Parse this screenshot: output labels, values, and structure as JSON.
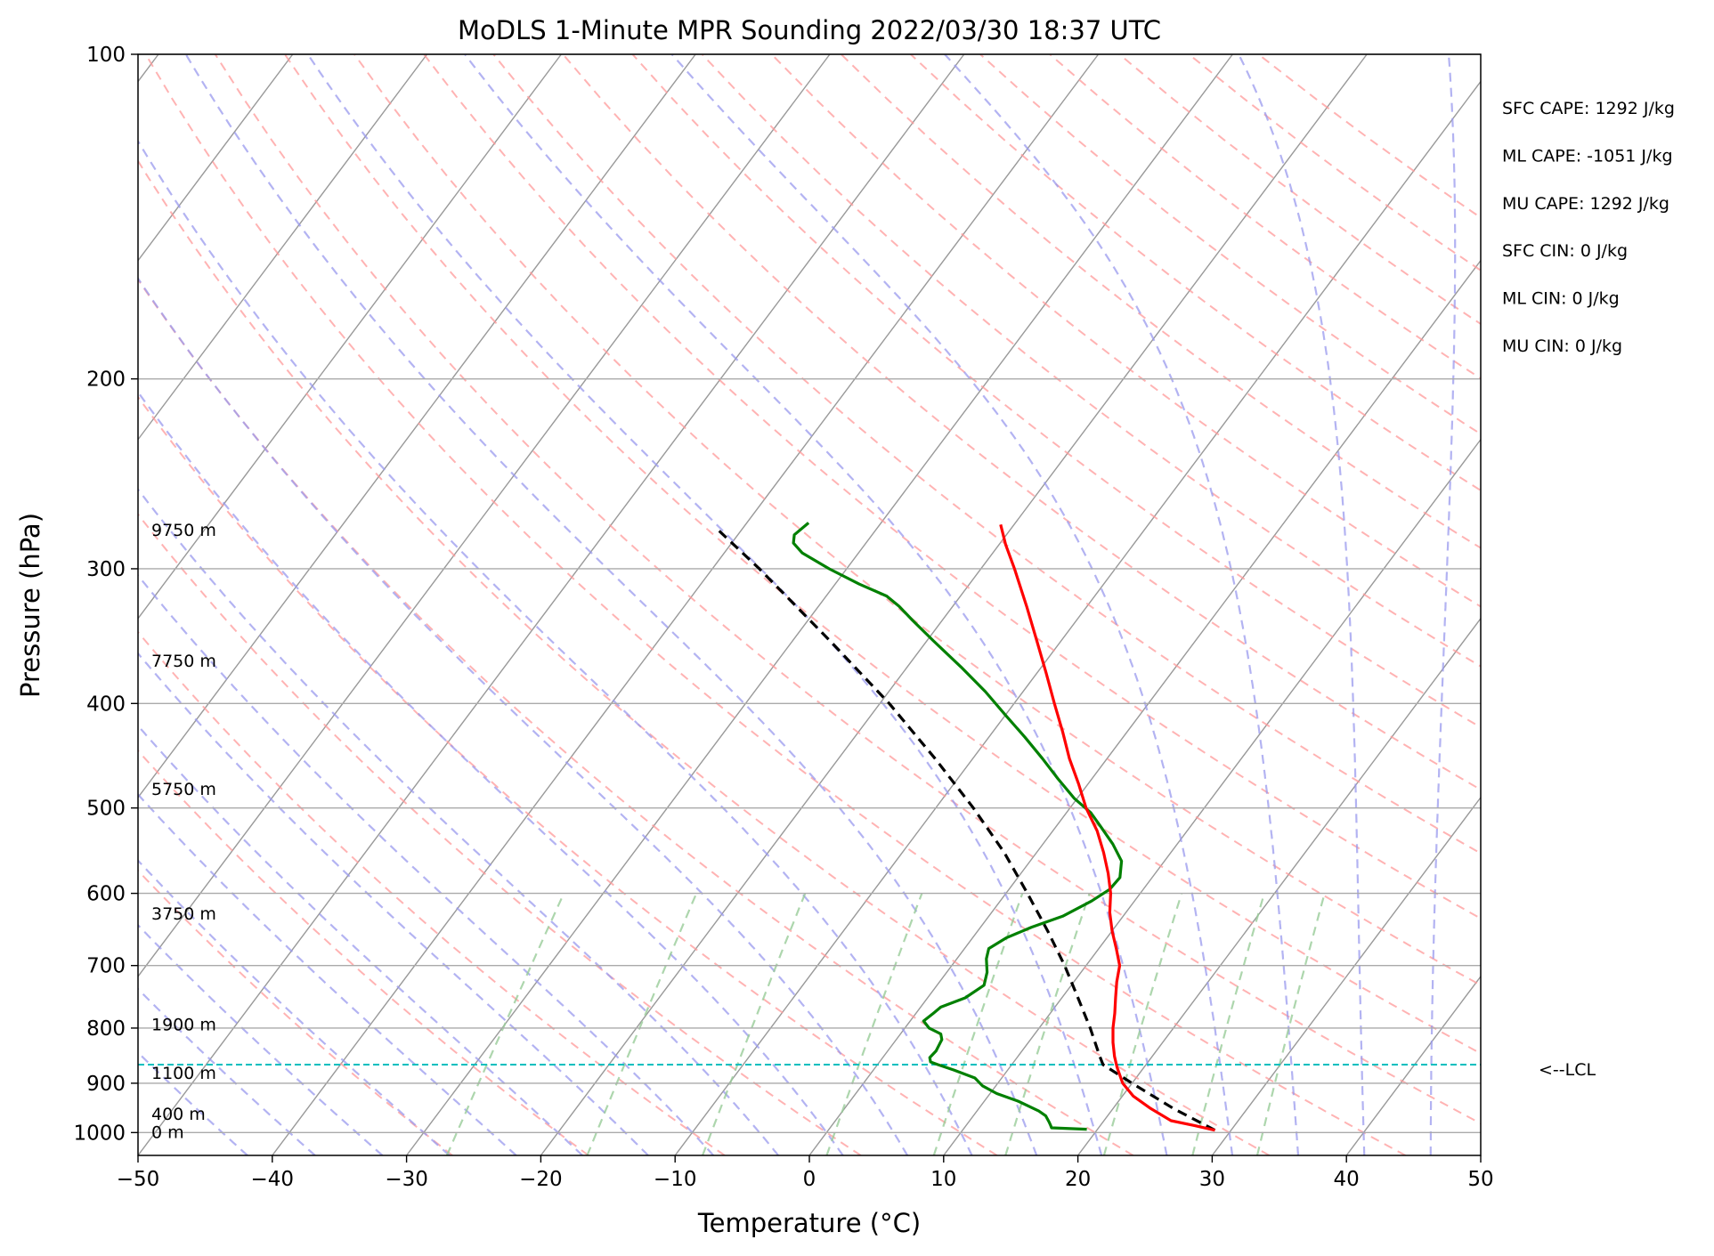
{
  "chart_data": {
    "type": "skew-t log-p sounding",
    "title": "MoDLS 1-Minute MPR Sounding 2022/03/30 18:37 UTC",
    "xlabel": "Temperature (°C)",
    "ylabel": "Pressure (hPa)",
    "xlim": [
      -50,
      50
    ],
    "ylim": [
      1050,
      100
    ],
    "y_scale": "log",
    "grid": true,
    "x_ticks": [
      -50,
      -40,
      -30,
      -20,
      -10,
      0,
      10,
      20,
      30,
      40,
      50
    ],
    "y_ticks": [
      1000,
      900,
      800,
      700,
      600,
      500,
      400,
      300,
      200,
      100
    ],
    "x_tick_labels": [
      "−50",
      "−40",
      "−30",
      "−20",
      "−10",
      "0",
      "10",
      "20",
      "30",
      "40",
      "50"
    ],
    "y_tick_labels": [
      "1000",
      "900",
      "800",
      "700",
      "600",
      "500",
      "400",
      "300",
      "200",
      "100"
    ],
    "colors": {
      "temperature": "#ff0000",
      "dewpoint": "#008000",
      "parcel": "#000000",
      "lcl": "#00bfbf",
      "dry_adiabats": "#ff9999",
      "moist_adiabats": "#9999ee",
      "mixing_ratio": "#99cc99",
      "isotherms": "#999999"
    },
    "temperature_profile": [
      {
        "p": 995,
        "t": 28.8
      },
      {
        "p": 985,
        "t": 27.0
      },
      {
        "p": 975,
        "t": 25.0
      },
      {
        "p": 950,
        "t": 22.8
      },
      {
        "p": 925,
        "t": 20.8
      },
      {
        "p": 900,
        "t": 19.3
      },
      {
        "p": 870,
        "t": 18.0
      },
      {
        "p": 850,
        "t": 17.2
      },
      {
        "p": 825,
        "t": 16.3
      },
      {
        "p": 800,
        "t": 15.5
      },
      {
        "p": 775,
        "t": 14.8
      },
      {
        "p": 750,
        "t": 14.0
      },
      {
        "p": 725,
        "t": 13.2
      },
      {
        "p": 700,
        "t": 12.5
      },
      {
        "p": 675,
        "t": 11.3
      },
      {
        "p": 650,
        "t": 10.0
      },
      {
        "p": 625,
        "t": 8.8
      },
      {
        "p": 600,
        "t": 7.8
      },
      {
        "p": 575,
        "t": 6.5
      },
      {
        "p": 550,
        "t": 5.0
      },
      {
        "p": 525,
        "t": 3.3
      },
      {
        "p": 500,
        "t": 1.2
      },
      {
        "p": 475,
        "t": -0.7
      },
      {
        "p": 450,
        "t": -2.8
      },
      {
        "p": 425,
        "t": -4.8
      },
      {
        "p": 400,
        "t": -7.0
      },
      {
        "p": 375,
        "t": -9.3
      },
      {
        "p": 350,
        "t": -11.8
      },
      {
        "p": 325,
        "t": -14.5
      },
      {
        "p": 300,
        "t": -17.5
      },
      {
        "p": 285,
        "t": -19.5
      },
      {
        "p": 273,
        "t": -21.0
      }
    ],
    "dewpoint_profile": [
      {
        "p": 993,
        "t": 19.2
      },
      {
        "p": 990,
        "t": 16.5
      },
      {
        "p": 985,
        "t": 16.3
      },
      {
        "p": 978,
        "t": 16.0
      },
      {
        "p": 965,
        "t": 15.4
      },
      {
        "p": 955,
        "t": 14.6
      },
      {
        "p": 935,
        "t": 12.5
      },
      {
        "p": 920,
        "t": 10.5
      },
      {
        "p": 905,
        "t": 9.0
      },
      {
        "p": 890,
        "t": 8.0
      },
      {
        "p": 875,
        "t": 6.0
      },
      {
        "p": 865,
        "t": 4.5
      },
      {
        "p": 860,
        "t": 3.8
      },
      {
        "p": 852,
        "t": 3.5
      },
      {
        "p": 840,
        "t": 3.6
      },
      {
        "p": 830,
        "t": 3.5
      },
      {
        "p": 820,
        "t": 3.4
      },
      {
        "p": 810,
        "t": 3.0
      },
      {
        "p": 800,
        "t": 1.8
      },
      {
        "p": 788,
        "t": 1.0
      },
      {
        "p": 775,
        "t": 1.3
      },
      {
        "p": 765,
        "t": 1.5
      },
      {
        "p": 750,
        "t": 2.8
      },
      {
        "p": 730,
        "t": 3.5
      },
      {
        "p": 710,
        "t": 3.0
      },
      {
        "p": 690,
        "t": 2.2
      },
      {
        "p": 675,
        "t": 1.8
      },
      {
        "p": 660,
        "t": 2.5
      },
      {
        "p": 645,
        "t": 3.8
      },
      {
        "p": 630,
        "t": 5.5
      },
      {
        "p": 610,
        "t": 6.8
      },
      {
        "p": 595,
        "t": 7.5
      },
      {
        "p": 580,
        "t": 7.6
      },
      {
        "p": 560,
        "t": 6.8
      },
      {
        "p": 540,
        "t": 5.2
      },
      {
        "p": 520,
        "t": 3.3
      },
      {
        "p": 505,
        "t": 1.8
      },
      {
        "p": 490,
        "t": -0.2
      },
      {
        "p": 470,
        "t": -2.5
      },
      {
        "p": 450,
        "t": -4.8
      },
      {
        "p": 430,
        "t": -7.3
      },
      {
        "p": 410,
        "t": -10.0
      },
      {
        "p": 390,
        "t": -12.8
      },
      {
        "p": 370,
        "t": -16.0
      },
      {
        "p": 350,
        "t": -19.5
      },
      {
        "p": 335,
        "t": -22.2
      },
      {
        "p": 325,
        "t": -24.0
      },
      {
        "p": 318,
        "t": -25.5
      },
      {
        "p": 310,
        "t": -28.2
      },
      {
        "p": 300,
        "t": -31.3
      },
      {
        "p": 290,
        "t": -34.2
      },
      {
        "p": 284,
        "t": -35.4
      },
      {
        "p": 279,
        "t": -35.8
      },
      {
        "p": 272,
        "t": -35.4
      }
    ],
    "parcel_profile": [
      {
        "p": 995,
        "t": 28.8
      },
      {
        "p": 950,
        "t": 24.5
      },
      {
        "p": 900,
        "t": 20.0
      },
      {
        "p": 865,
        "t": 16.8
      },
      {
        "p": 850,
        "t": 16.1
      },
      {
        "p": 800,
        "t": 13.8
      },
      {
        "p": 750,
        "t": 11.2
      },
      {
        "p": 700,
        "t": 8.4
      },
      {
        "p": 650,
        "t": 5.2
      },
      {
        "p": 600,
        "t": 1.6
      },
      {
        "p": 550,
        "t": -2.4
      },
      {
        "p": 500,
        "t": -7.2
      },
      {
        "p": 450,
        "t": -12.8
      },
      {
        "p": 400,
        "t": -19.3
      },
      {
        "p": 350,
        "t": -27.2
      },
      {
        "p": 300,
        "t": -36.5
      },
      {
        "p": 275,
        "t": -42.0
      }
    ],
    "lcl_pressure": 865,
    "lcl_label": "<--LCL",
    "height_labels": [
      {
        "p": 276,
        "label": "9750 m"
      },
      {
        "p": 365,
        "label": "7750 m"
      },
      {
        "p": 480,
        "label": "5750 m"
      },
      {
        "p": 626,
        "label": "3750 m"
      },
      {
        "p": 793,
        "label": "1900 m"
      },
      {
        "p": 880,
        "label": "1100 m"
      },
      {
        "p": 960,
        "label": "400 m"
      },
      {
        "p": 998,
        "label": "0 m"
      }
    ],
    "stats": [
      "SFC CAPE: 1292 J/kg",
      "ML CAPE: -1051 J/kg",
      "MU CAPE: 1292 J/kg",
      "SFC CIN: 0 J/kg",
      "ML CIN: 0 J/kg",
      "MU CIN: 0 J/kg"
    ]
  }
}
